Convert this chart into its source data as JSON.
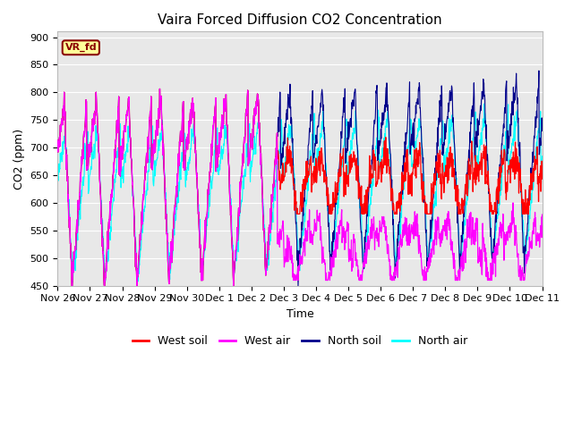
{
  "title": "Vaira Forced Diffusion CO2 Concentration",
  "xlabel": "Time",
  "ylabel": "CO2 (ppm)",
  "ylim": [
    450,
    910
  ],
  "yticks": [
    450,
    500,
    550,
    600,
    650,
    700,
    750,
    800,
    850,
    900
  ],
  "legend_label": "VR_fd",
  "series_labels": [
    "West soil",
    "West air",
    "North soil",
    "North air"
  ],
  "colors": [
    "red",
    "magenta",
    "darkblue",
    "cyan"
  ],
  "fig_bg": "#ffffff",
  "plot_bg": "#e8e8e8",
  "grid_color": "#ffffff",
  "title_fontsize": 11,
  "label_fontsize": 9,
  "tick_fontsize": 8,
  "legend_fontsize": 9,
  "n_points": 1500,
  "n_days": 15,
  "seed": 7
}
